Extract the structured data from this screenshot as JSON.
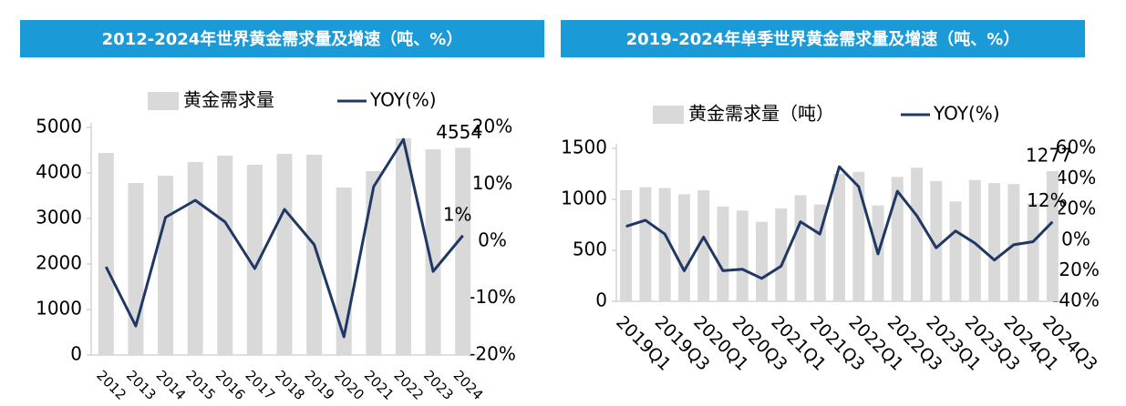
{
  "chart_data": [
    {
      "type": "bar",
      "title": "2012-2024年世界黄金需求量及增速（吨、%）",
      "categories": [
        "2012",
        "2013",
        "2014",
        "2015",
        "2016",
        "2017",
        "2018",
        "2019",
        "2020",
        "2021",
        "2022",
        "2023",
        "2024"
      ],
      "series": [
        {
          "name": "黄金需求量",
          "type": "bar",
          "color": "#d9d9d9",
          "values": [
            4440,
            3780,
            3940,
            4240,
            4380,
            4180,
            4420,
            4400,
            3680,
            4040,
            4760,
            4520,
            4554
          ],
          "value_labels": [
            null,
            null,
            null,
            null,
            null,
            null,
            null,
            null,
            null,
            null,
            null,
            null,
            "4554"
          ]
        },
        {
          "name": "YOY(%)",
          "type": "line",
          "axis": "y2",
          "color": "#1f3864",
          "values": [
            -4.5,
            -14.9,
            4.2,
            7.2,
            3.4,
            -4.8,
            5.6,
            -0.6,
            -16.8,
            9.6,
            17.9,
            -5.3,
            1
          ],
          "value_labels": [
            null,
            null,
            null,
            null,
            null,
            null,
            null,
            null,
            null,
            null,
            null,
            null,
            "1%"
          ]
        }
      ],
      "ylim": [
        0,
        5000
      ],
      "yticks": [
        0,
        1000,
        2000,
        3000,
        4000,
        5000
      ],
      "y2lim": [
        -20,
        20
      ],
      "y2ticks": [
        {
          "value": -20,
          "label": "-20%"
        },
        {
          "value": -10,
          "label": "-10%"
        },
        {
          "value": 0,
          "label": "0%"
        },
        {
          "value": 10,
          "label": "10%"
        },
        {
          "value": 20,
          "label": "20%"
        }
      ],
      "grid": false,
      "legend": "top"
    },
    {
      "type": "bar",
      "title": "2019-2024年单季世界黄金需求量及增速（吨、%）",
      "categories": [
        "2019Q1",
        null,
        "2019Q3",
        null,
        "2020Q1",
        null,
        "2020Q3",
        null,
        "2021Q1",
        null,
        "2021Q3",
        null,
        "2022Q1",
        null,
        "2022Q3",
        null,
        "2023Q1",
        null,
        "2023Q3",
        null,
        "2024Q1",
        null,
        "2024Q3"
      ],
      "series": [
        {
          "name": "黄金需求量（吨）",
          "type": "bar",
          "color": "#d9d9d9",
          "values": [
            1090,
            1120,
            1110,
            1050,
            1090,
            930,
            890,
            780,
            910,
            1040,
            950,
            1250,
            1270,
            940,
            1220,
            1310,
            1180,
            980,
            1190,
            1160,
            1150,
            960,
            1277
          ],
          "value_labels": [
            null,
            null,
            null,
            null,
            null,
            null,
            null,
            null,
            null,
            null,
            null,
            null,
            null,
            null,
            null,
            null,
            null,
            null,
            null,
            null,
            null,
            null,
            "1277"
          ]
        },
        {
          "name": "YOY(%)",
          "type": "line",
          "axis": "y2",
          "color": "#1f3864",
          "values": [
            9,
            13,
            4,
            -20,
            2,
            -20,
            -19,
            -25,
            -17,
            12,
            4,
            48,
            35,
            -9,
            32,
            16,
            -5,
            6,
            -2,
            -13,
            -3,
            -1,
            12
          ],
          "value_labels": [
            null,
            null,
            null,
            null,
            null,
            null,
            null,
            null,
            null,
            null,
            null,
            null,
            null,
            null,
            null,
            null,
            null,
            null,
            null,
            null,
            null,
            null,
            "12%"
          ]
        }
      ],
      "ylim": [
        0,
        1500
      ],
      "yticks": [
        0,
        500,
        1000,
        1500
      ],
      "y2lim": [
        -40,
        60
      ],
      "y2ticks": [
        {
          "value": -40,
          "label": "-40%"
        },
        {
          "value": -20,
          "label": "-20%"
        },
        {
          "value": 0,
          "label": "0%"
        },
        {
          "value": 20,
          "label": "20%"
        },
        {
          "value": 40,
          "label": "40%"
        },
        {
          "value": 60,
          "label": "60%"
        }
      ],
      "grid": false,
      "legend": "top"
    }
  ]
}
